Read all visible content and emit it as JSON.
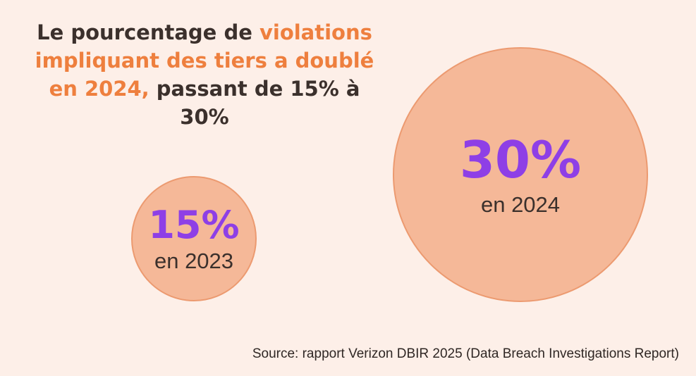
{
  "title": {
    "part1": "Le pourcentage de ",
    "part2": "violations impliquant des tiers a doublé en 2024,",
    "part3": " passant de 15% à 30%"
  },
  "chart_data": {
    "type": "bubble",
    "points": [
      {
        "year_label": "en 2023",
        "value": 15,
        "value_label": "15%"
      },
      {
        "year_label": "en 2024",
        "value": 30,
        "value_label": "30%"
      }
    ]
  },
  "source": "Source: rapport Verizon DBIR 2025 (Data Breach Investigations Report)",
  "colors": {
    "background": "#fdefe8",
    "bubble_fill": "#f5b898",
    "bubble_stroke": "#ec9a70",
    "value_text": "#8e3fe6",
    "highlight_text": "#ee7f3e",
    "body_text": "#3b302c"
  }
}
